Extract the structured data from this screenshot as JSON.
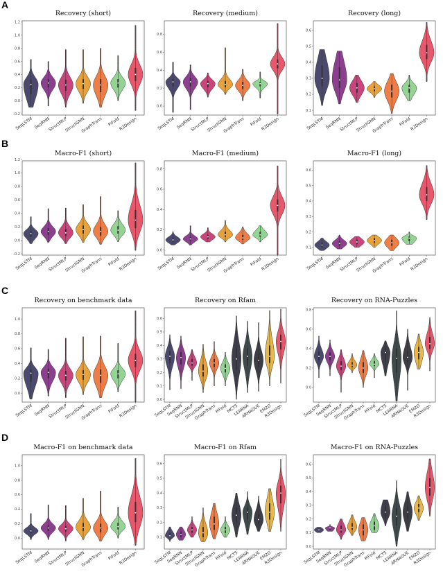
{
  "colors": {
    "SeqLSTM": "#4b4a6e",
    "SeqRNN": "#8c3f8f",
    "StructMLP": "#c9467c",
    "StructGNN": "#e9a23b",
    "GraphTrans": "#f07c46",
    "PiFold": "#93d493",
    "MCTS": "#3e3e4c",
    "LEARNA": "#3f4a4c",
    "ARNAQUE": "#3d3d48",
    "EM2D": "#e8b84a",
    "R3Design": "#e7586c"
  },
  "chart_data": [
    {
      "type": "violin",
      "letter": "A",
      "title": "Recovery (short)",
      "ylim": [
        -0.22,
        1.22
      ],
      "ticks": [
        -0.2,
        0,
        0.2,
        0.4,
        0.6,
        0.8,
        1.0,
        1.2
      ],
      "methods": [
        "SeqLSTM",
        "SeqRNN",
        "StructMLP",
        "StructGNN",
        "GraphTrans",
        "PiFold",
        "R3Design"
      ],
      "stats": [
        [
          -0.1,
          0.1,
          0.25,
          0.32,
          0.63
        ],
        [
          -0.08,
          0.2,
          0.27,
          0.33,
          0.6
        ],
        [
          -0.1,
          0.15,
          0.24,
          0.32,
          0.78
        ],
        [
          -0.04,
          0.18,
          0.26,
          0.33,
          0.78
        ],
        [
          -0.1,
          0.13,
          0.24,
          0.33,
          0.8
        ],
        [
          0,
          0.2,
          0.27,
          0.33,
          0.69
        ],
        [
          -0.15,
          0.3,
          0.4,
          0.5,
          1.15
        ]
      ]
    },
    {
      "type": "violin",
      "title": "Recovery (medium)",
      "ylim": [
        -0.1,
        0.95
      ],
      "ticks": [
        0,
        0.2,
        0.4,
        0.6,
        0.8
      ],
      "methods": [
        "SeqLSTM",
        "SeqRNN",
        "StructMLP",
        "StructGNN",
        "GraphTrans",
        "PiFold",
        "R3Design"
      ],
      "stats": [
        [
          -0.07,
          0.22,
          0.27,
          0.3,
          0.49
        ],
        [
          -0.04,
          0.22,
          0.27,
          0.31,
          0.46
        ],
        [
          0.1,
          0.21,
          0.25,
          0.28,
          0.37
        ],
        [
          0.13,
          0.21,
          0.24,
          0.28,
          0.65
        ],
        [
          0.06,
          0.19,
          0.23,
          0.27,
          0.41
        ],
        [
          0.09,
          0.22,
          0.25,
          0.27,
          0.38
        ],
        [
          -0.09,
          0.42,
          0.47,
          0.52,
          0.92
        ]
      ]
    },
    {
      "type": "violin",
      "title": "Recovery (long)",
      "ylim": [
        0.07,
        0.66
      ],
      "ticks": [
        0.1,
        0.2,
        0.3,
        0.4,
        0.5,
        0.6
      ],
      "methods": [
        "SeqLSTM",
        "SeqRNN",
        "StructMLP",
        "StructGNN",
        "GraphTrans",
        "PiFold",
        "R3Design"
      ],
      "stats": [
        [
          0.13,
          0.25,
          0.3,
          0.38,
          0.48
        ],
        [
          0.14,
          0.24,
          0.29,
          0.37,
          0.47
        ],
        [
          0.15,
          0.21,
          0.24,
          0.27,
          0.32
        ],
        [
          0.18,
          0.22,
          0.235,
          0.25,
          0.28
        ],
        [
          0.08,
          0.18,
          0.22,
          0.26,
          0.33
        ],
        [
          0.16,
          0.21,
          0.24,
          0.26,
          0.32
        ],
        [
          0.28,
          0.42,
          0.46,
          0.51,
          0.65
        ]
      ]
    },
    {
      "type": "violin",
      "letter": "B",
      "title": "Macro-F1 (short)",
      "ylim": [
        -0.22,
        1.18
      ],
      "ticks": [
        -0.2,
        0,
        0.2,
        0.4,
        0.6,
        0.8,
        1.0,
        1.2
      ],
      "methods": [
        "SeqLSTM",
        "SeqRNN",
        "StructMLP",
        "StructGNN",
        "GraphTrans",
        "PiFold",
        "R3Design"
      ],
      "stats": [
        [
          -0.05,
          0.05,
          0.1,
          0.14,
          0.35
        ],
        [
          -0.03,
          0.08,
          0.13,
          0.18,
          0.47
        ],
        [
          -0.05,
          0.06,
          0.11,
          0.17,
          0.48
        ],
        [
          -0.03,
          0.1,
          0.16,
          0.22,
          0.53
        ],
        [
          -0.06,
          0.07,
          0.13,
          0.2,
          0.65
        ],
        [
          -0.02,
          0.1,
          0.15,
          0.21,
          0.44
        ],
        [
          -0.15,
          0.18,
          0.3,
          0.45,
          1.15
        ]
      ]
    },
    {
      "type": "violin",
      "title": "Macro-F1 (medium)",
      "ylim": [
        -0.05,
        0.88
      ],
      "ticks": [
        0,
        0.2,
        0.4,
        0.6,
        0.8
      ],
      "methods": [
        "SeqLSTM",
        "SeqRNN",
        "StructMLP",
        "StructGNN",
        "GraphTrans",
        "PiFold",
        "R3Design"
      ],
      "stats": [
        [
          0.05,
          0.08,
          0.1,
          0.12,
          0.18
        ],
        [
          0.05,
          0.09,
          0.11,
          0.13,
          0.24
        ],
        [
          0.08,
          0.11,
          0.13,
          0.15,
          0.22
        ],
        [
          0.08,
          0.13,
          0.15,
          0.18,
          0.29
        ],
        [
          0.06,
          0.1,
          0.12,
          0.15,
          0.23
        ],
        [
          0.08,
          0.13,
          0.15,
          0.18,
          0.24
        ],
        [
          -0.05,
          0.38,
          0.44,
          0.5,
          0.83
        ]
      ]
    },
    {
      "type": "violin",
      "title": "Macro-F1 (long)",
      "ylim": [
        0.05,
        0.66
      ],
      "ticks": [
        0.1,
        0.2,
        0.3,
        0.4,
        0.5,
        0.6
      ],
      "methods": [
        "SeqLSTM",
        "SeqRNN",
        "StructMLP",
        "StructGNN",
        "GraphTrans",
        "PiFold",
        "R3Design"
      ],
      "stats": [
        [
          0.08,
          0.1,
          0.115,
          0.13,
          0.16
        ],
        [
          0.09,
          0.11,
          0.125,
          0.14,
          0.18
        ],
        [
          0.1,
          0.12,
          0.135,
          0.15,
          0.17
        ],
        [
          0.1,
          0.13,
          0.145,
          0.16,
          0.18
        ],
        [
          0.08,
          0.11,
          0.13,
          0.15,
          0.18
        ],
        [
          0.12,
          0.14,
          0.16,
          0.17,
          0.2
        ],
        [
          0.28,
          0.4,
          0.44,
          0.49,
          0.63
        ]
      ]
    },
    {
      "type": "violin",
      "letter": "C",
      "title": "Recovery on benchmark data",
      "ylim": [
        -0.12,
        1.15
      ],
      "ticks": [
        0,
        0.2,
        0.4,
        0.6,
        0.8,
        1.0
      ],
      "methods": [
        "SeqLSTM",
        "SeqRNN",
        "StructMLP",
        "StructGNN",
        "GraphTrans",
        "PiFold",
        "R3Design"
      ],
      "stats": [
        [
          -0.08,
          0.15,
          0.27,
          0.32,
          0.61
        ],
        [
          -0.04,
          0.2,
          0.28,
          0.33,
          0.59
        ],
        [
          -0.06,
          0.17,
          0.24,
          0.3,
          0.74
        ],
        [
          -0.02,
          0.18,
          0.25,
          0.31,
          0.76
        ],
        [
          -0.06,
          0.14,
          0.24,
          0.32,
          0.77
        ],
        [
          0.02,
          0.2,
          0.26,
          0.31,
          0.67
        ],
        [
          -0.12,
          0.35,
          0.44,
          0.53,
          1.11
        ]
      ]
    },
    {
      "type": "violin",
      "title": "Recovery on Rfam",
      "ylim": [
        -0.02,
        0.68
      ],
      "ticks": [
        0,
        0.1,
        0.2,
        0.3,
        0.4,
        0.5,
        0.6
      ],
      "methods": [
        "SeqLSTM",
        "SeqRNN",
        "StructMLP",
        "StructGNN",
        "GraphTrans",
        "PiFold",
        "MCTS",
        "LEARNA",
        "ARNAQUE",
        "EM2D",
        "R3Design"
      ],
      "stats": [
        [
          0.07,
          0.27,
          0.32,
          0.36,
          0.48
        ],
        [
          0.08,
          0.26,
          0.31,
          0.35,
          0.47
        ],
        [
          0.14,
          0.25,
          0.27,
          0.3,
          0.37
        ],
        [
          0.05,
          0.17,
          0.21,
          0.26,
          0.41
        ],
        [
          0.1,
          0.24,
          0.27,
          0.3,
          0.43
        ],
        [
          0.1,
          0.2,
          0.23,
          0.26,
          0.35
        ],
        [
          0,
          0.22,
          0.3,
          0.38,
          0.62
        ],
        [
          0.05,
          0.25,
          0.32,
          0.38,
          0.58
        ],
        [
          0.06,
          0.24,
          0.29,
          0.34,
          0.57
        ],
        [
          0.1,
          0.27,
          0.32,
          0.4,
          0.66
        ],
        [
          0.12,
          0.37,
          0.43,
          0.48,
          0.67
        ]
      ]
    },
    {
      "type": "violin",
      "title": "Recovery on RNA-Puzzles",
      "ylim": [
        -0.15,
        0.82
      ],
      "ticks": [
        0,
        0.2,
        0.4,
        0.6,
        0.8
      ],
      "methods": [
        "SeqLSTM",
        "SeqRNN",
        "StructMLP",
        "StructGNN",
        "GraphTrans",
        "PiFold",
        "MCTS",
        "LEARNA",
        "ARNAQUE",
        "EM2D",
        "R3Design"
      ],
      "stats": [
        [
          0.1,
          0.28,
          0.32,
          0.37,
          0.53
        ],
        [
          0.12,
          0.28,
          0.32,
          0.36,
          0.49
        ],
        [
          -0.05,
          0.18,
          0.22,
          0.27,
          0.39
        ],
        [
          0.15,
          0.21,
          0.23,
          0.26,
          0.35
        ],
        [
          0,
          0.15,
          0.2,
          0.26,
          0.38
        ],
        [
          0.1,
          0.22,
          0.24,
          0.27,
          0.35
        ],
        [
          0.12,
          0.28,
          0.36,
          0.4,
          0.48
        ],
        [
          -0.14,
          0.15,
          0.3,
          0.4,
          0.79
        ],
        [
          -0.03,
          0.26,
          0.31,
          0.38,
          0.6
        ],
        [
          0.19,
          0.29,
          0.36,
          0.42,
          0.55
        ],
        [
          0.17,
          0.4,
          0.45,
          0.52,
          0.72
        ]
      ]
    },
    {
      "type": "violin",
      "letter": "D",
      "title": "Macro-F1 on benchmark data",
      "ylim": [
        -0.15,
        1.15
      ],
      "ticks": [
        0,
        0.2,
        0.4,
        0.6,
        0.8,
        1.0
      ],
      "methods": [
        "SeqLSTM",
        "SeqRNN",
        "StructMLP",
        "StructGNN",
        "GraphTrans",
        "PiFold",
        "R3Design"
      ],
      "stats": [
        [
          -0.02,
          0.07,
          0.1,
          0.13,
          0.34
        ],
        [
          -0.02,
          0.1,
          0.14,
          0.18,
          0.46
        ],
        [
          -0.04,
          0.09,
          0.13,
          0.17,
          0.45
        ],
        [
          -0.02,
          0.1,
          0.15,
          0.21,
          0.55
        ],
        [
          -0.04,
          0.08,
          0.14,
          0.2,
          0.65
        ],
        [
          0,
          0.12,
          0.16,
          0.21,
          0.43
        ],
        [
          -0.1,
          0.22,
          0.35,
          0.5,
          1.1
        ]
      ]
    },
    {
      "type": "violin",
      "title": "Macro-F1 on Rfam",
      "ylim": [
        0.02,
        0.66
      ],
      "ticks": [
        0.1,
        0.2,
        0.3,
        0.4,
        0.5,
        0.6
      ],
      "methods": [
        "SeqLSTM",
        "SeqRNN",
        "StructMLP",
        "StructGNN",
        "GraphTrans",
        "PiFold",
        "MCTS",
        "LEARNA",
        "ARNAQUE",
        "EM2D",
        "R3Design"
      ],
      "stats": [
        [
          0.07,
          0.1,
          0.11,
          0.13,
          0.17
        ],
        [
          0.08,
          0.1,
          0.12,
          0.14,
          0.17
        ],
        [
          0.1,
          0.13,
          0.15,
          0.17,
          0.24
        ],
        [
          0.07,
          0.1,
          0.13,
          0.17,
          0.3
        ],
        [
          0.09,
          0.15,
          0.19,
          0.24,
          0.33
        ],
        [
          0.1,
          0.13,
          0.15,
          0.17,
          0.24
        ],
        [
          0.1,
          0.2,
          0.25,
          0.3,
          0.4
        ],
        [
          0.12,
          0.22,
          0.27,
          0.3,
          0.41
        ],
        [
          0.14,
          0.19,
          0.22,
          0.26,
          0.38
        ],
        [
          0.14,
          0.22,
          0.27,
          0.33,
          0.43
        ],
        [
          0.14,
          0.33,
          0.4,
          0.45,
          0.63
        ]
      ]
    },
    {
      "type": "violin",
      "title": "Macro-F1 on RNA-Puzzles",
      "ylim": [
        -0.02,
        0.67
      ],
      "ticks": [
        0,
        0.1,
        0.2,
        0.3,
        0.4,
        0.5,
        0.6
      ],
      "methods": [
        "SeqLSTM",
        "SeqRNN",
        "StructMLP",
        "StructGNN",
        "GraphTrans",
        "PiFold",
        "MCTS",
        "LEARNA",
        "ARNAQUE",
        "EM2D",
        "R3Design"
      ],
      "stats": [
        [
          0.1,
          0.11,
          0.12,
          0.13,
          0.14
        ],
        [
          0.11,
          0.12,
          0.135,
          0.14,
          0.16
        ],
        [
          0.05,
          0.1,
          0.12,
          0.15,
          0.2
        ],
        [
          0.08,
          0.12,
          0.14,
          0.17,
          0.23
        ],
        [
          0.04,
          0.08,
          0.12,
          0.16,
          0.21
        ],
        [
          0.1,
          0.12,
          0.15,
          0.18,
          0.24
        ],
        [
          0.15,
          0.22,
          0.25,
          0.3,
          0.34
        ],
        [
          0,
          0.15,
          0.22,
          0.28,
          0.48
        ],
        [
          0.11,
          0.2,
          0.25,
          0.3,
          0.4
        ],
        [
          0.19,
          0.25,
          0.28,
          0.31,
          0.37
        ],
        [
          0.22,
          0.37,
          0.43,
          0.5,
          0.64
        ]
      ]
    }
  ]
}
